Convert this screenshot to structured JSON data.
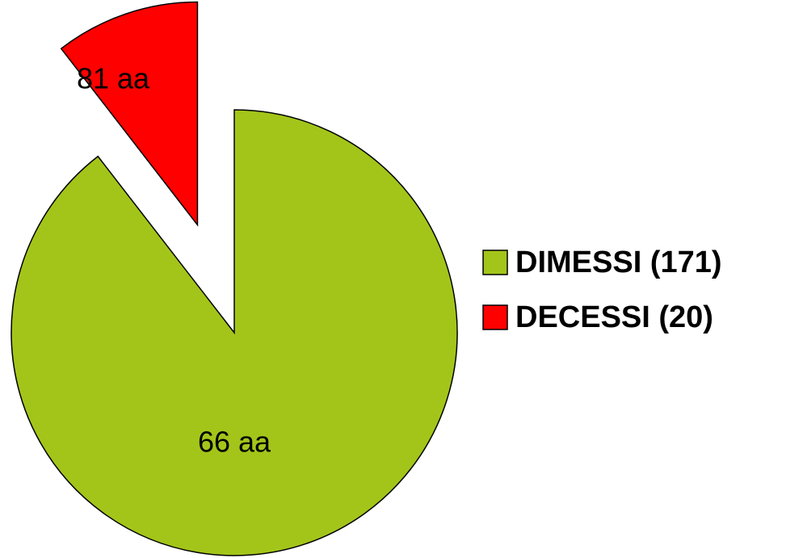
{
  "chart_data": {
    "type": "pie",
    "categories": [
      "DIMESSI (171)",
      "DECESSI (20)"
    ],
    "values": [
      171,
      20
    ],
    "colors": [
      "#a3c51a",
      "#ff0000"
    ],
    "annotations": [
      "66 aa",
      "81 aa"
    ],
    "explode": [
      false,
      true
    ],
    "legend": "right"
  }
}
